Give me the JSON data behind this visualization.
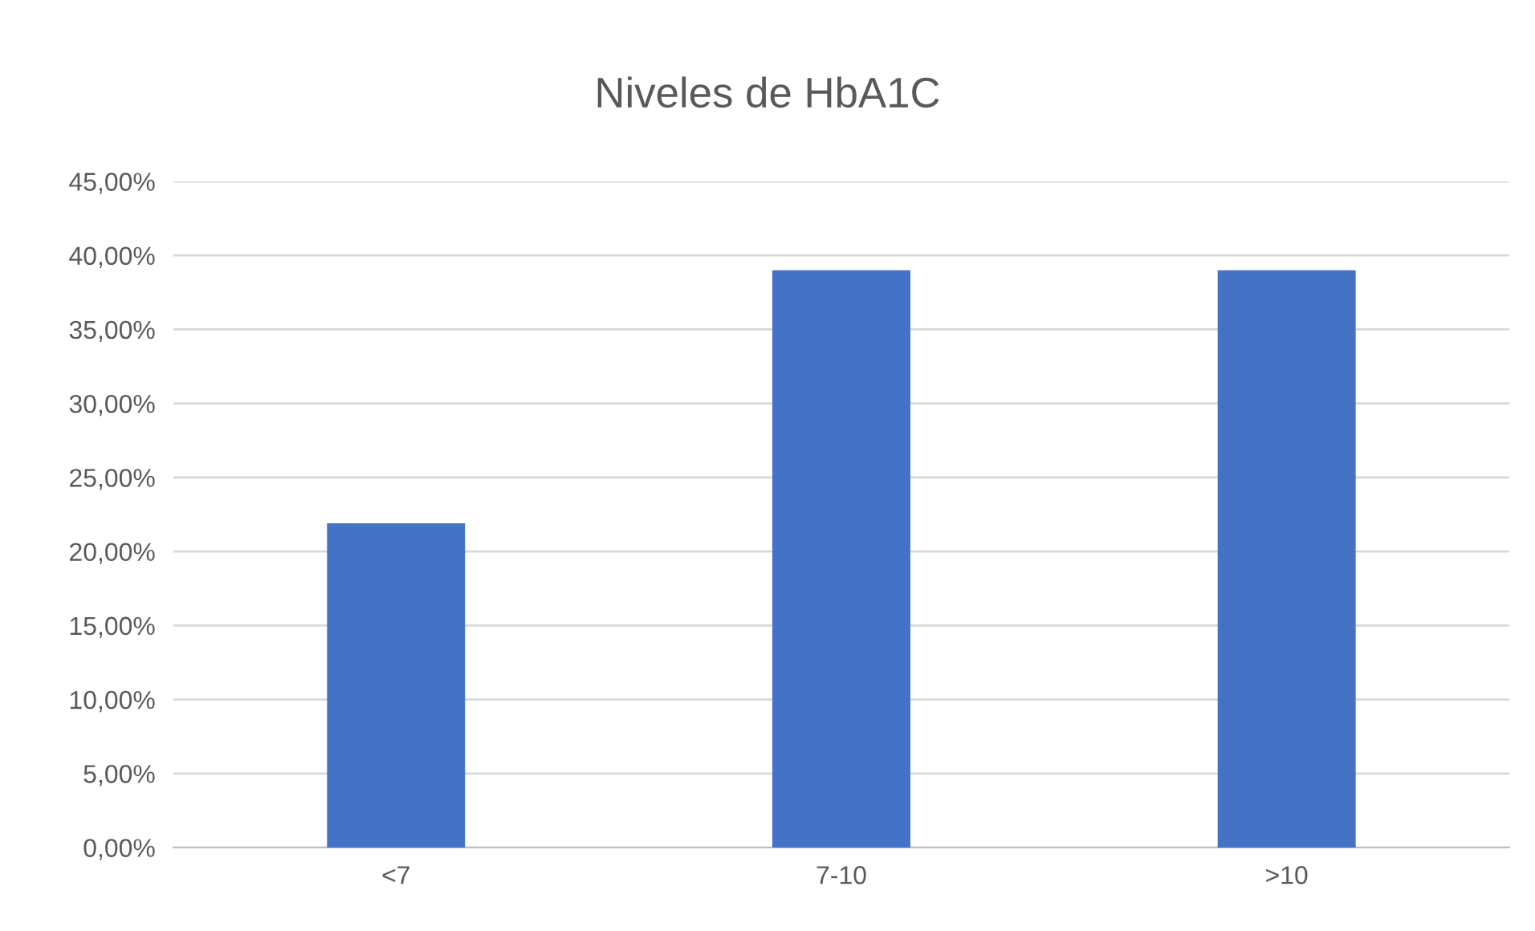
{
  "chart_data": {
    "type": "bar",
    "title": "Niveles de HbA1C",
    "categories": [
      "<7",
      "7-10",
      ">10"
    ],
    "values": [
      21.9,
      39.0,
      39.0
    ],
    "color": "#4472c4",
    "ylim": [
      0,
      45
    ],
    "yticks": [
      {
        "value": 0,
        "label": "0,00%"
      },
      {
        "value": 5,
        "label": "5,00%"
      },
      {
        "value": 10,
        "label": "10,00%"
      },
      {
        "value": 15,
        "label": "15,00%"
      },
      {
        "value": 20,
        "label": "20,00%"
      },
      {
        "value": 25,
        "label": "25,00%"
      },
      {
        "value": 30,
        "label": "30,00%"
      },
      {
        "value": 35,
        "label": "35,00%"
      },
      {
        "value": 40,
        "label": "40,00%"
      },
      {
        "value": 45,
        "label": "45,00%"
      }
    ],
    "grid": "y",
    "legend": false
  }
}
